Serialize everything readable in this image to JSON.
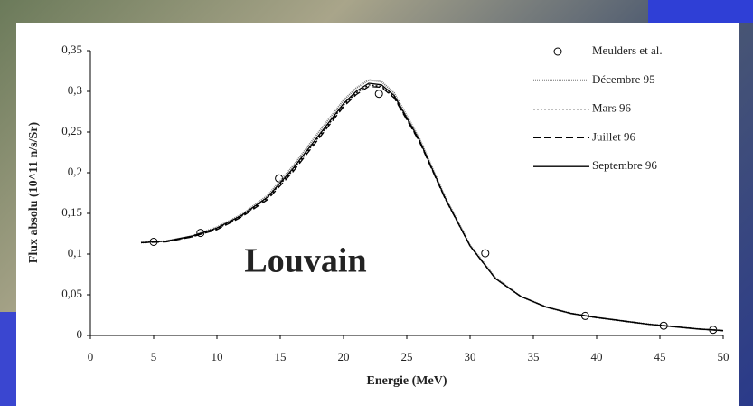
{
  "chart_data": {
    "type": "line",
    "annotation": "Louvain",
    "x_label": "Energie (MeV)",
    "y_label": "Flux absolu (10^11 n/s/Sr)",
    "x": [
      4,
      6,
      8,
      10,
      12,
      14,
      16,
      18,
      20,
      21,
      22,
      23,
      24,
      26,
      28,
      30,
      32,
      34,
      36,
      38,
      40,
      42,
      44,
      46,
      48,
      50
    ],
    "series": [
      {
        "name": "Meulders et al.",
        "type": "scatter",
        "color": "#000000",
        "x": [
          5,
          8.7,
          14.9,
          22.8,
          31.2,
          39.1,
          45.3,
          49.2
        ],
        "values": [
          0.115,
          0.126,
          0.193,
          0.297,
          0.101,
          0.024,
          0.012,
          0.007
        ]
      },
      {
        "name": "Décembre 95",
        "color": "#777777",
        "dash": "1,1",
        "values": [
          0.114,
          0.116,
          0.122,
          0.133,
          0.149,
          0.172,
          0.208,
          0.249,
          0.289,
          0.304,
          0.314,
          0.312,
          0.298,
          0.242,
          0.171,
          0.111,
          0.071,
          0.048,
          0.035,
          0.027,
          0.022,
          0.018,
          0.014,
          0.011,
          0.008,
          0.006
        ]
      },
      {
        "name": "Mars 96",
        "color": "#000000",
        "dash": "2,2",
        "values": [
          0.114,
          0.116,
          0.121,
          0.131,
          0.147,
          0.169,
          0.203,
          0.243,
          0.283,
          0.298,
          0.308,
          0.306,
          0.293,
          0.239,
          0.169,
          0.11,
          0.07,
          0.048,
          0.035,
          0.027,
          0.022,
          0.018,
          0.014,
          0.011,
          0.008,
          0.006
        ]
      },
      {
        "name": "Juillet 96",
        "color": "#000000",
        "dash": "8,4",
        "values": [
          0.114,
          0.115,
          0.121,
          0.13,
          0.146,
          0.167,
          0.201,
          0.241,
          0.281,
          0.296,
          0.306,
          0.305,
          0.292,
          0.238,
          0.169,
          0.11,
          0.07,
          0.048,
          0.035,
          0.027,
          0.022,
          0.018,
          0.014,
          0.011,
          0.008,
          0.006
        ]
      },
      {
        "name": "Septembre 96",
        "color": "#000000",
        "dash": "",
        "values": [
          0.114,
          0.116,
          0.122,
          0.132,
          0.148,
          0.17,
          0.205,
          0.245,
          0.285,
          0.3,
          0.31,
          0.308,
          0.295,
          0.24,
          0.17,
          0.11,
          0.07,
          0.048,
          0.035,
          0.027,
          0.022,
          0.018,
          0.014,
          0.011,
          0.008,
          0.006
        ]
      }
    ],
    "xlim": [
      0,
      50
    ],
    "xticks": [
      0,
      5,
      10,
      15,
      20,
      25,
      30,
      35,
      40,
      45,
      50
    ],
    "ylim": [
      0,
      0.35
    ],
    "yticks": [
      0,
      {
        "value": 0.05,
        "label": "0,05"
      },
      {
        "value": 0.1,
        "label": "0,1"
      },
      {
        "value": 0.15,
        "label": "0,15"
      },
      {
        "value": 0.2,
        "label": "0,2"
      },
      {
        "value": 0.25,
        "label": "0,25"
      },
      {
        "value": 0.3,
        "label": "0,3"
      },
      {
        "value": 0.35,
        "label": "0,35"
      }
    ],
    "grid": false,
    "legend": "upper right",
    "annotation_color": "#1a1adc"
  }
}
